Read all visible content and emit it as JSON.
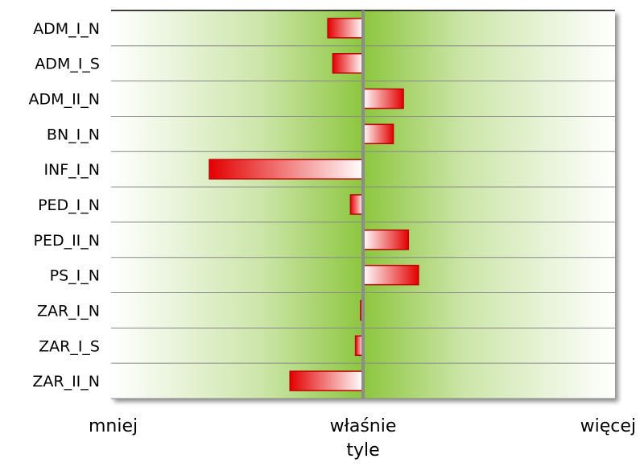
{
  "chart_data": {
    "type": "bar",
    "orientation": "horizontal",
    "categories": [
      "ADM_I_N",
      "ADM_I_S",
      "ADM_II_N",
      "BN_I_N",
      "INF_I_N",
      "PED_I_N",
      "PED_II_N",
      "PS_I_N",
      "ZAR_I_N",
      "ZAR_I_S",
      "ZAR_II_N"
    ],
    "values": [
      -0.14,
      -0.12,
      0.16,
      0.12,
      -0.61,
      -0.05,
      0.18,
      0.22,
      -0.01,
      -0.03,
      -0.29
    ],
    "xlim": [
      -1,
      1
    ],
    "x_tick_labels": [
      {
        "value": -1,
        "label": "mniej"
      },
      {
        "value": 0,
        "label": "właśnie tyle"
      },
      {
        "value": 1,
        "label": "więcej"
      }
    ],
    "grid": true,
    "colors": {
      "bar_fill_strong": "#e30000",
      "bar_fill_light": "#ffffff",
      "bar_stroke": "#c00000",
      "band_green": "#8dc63f",
      "center_line": "#8c8c8c",
      "grid_line": "#888888"
    }
  }
}
